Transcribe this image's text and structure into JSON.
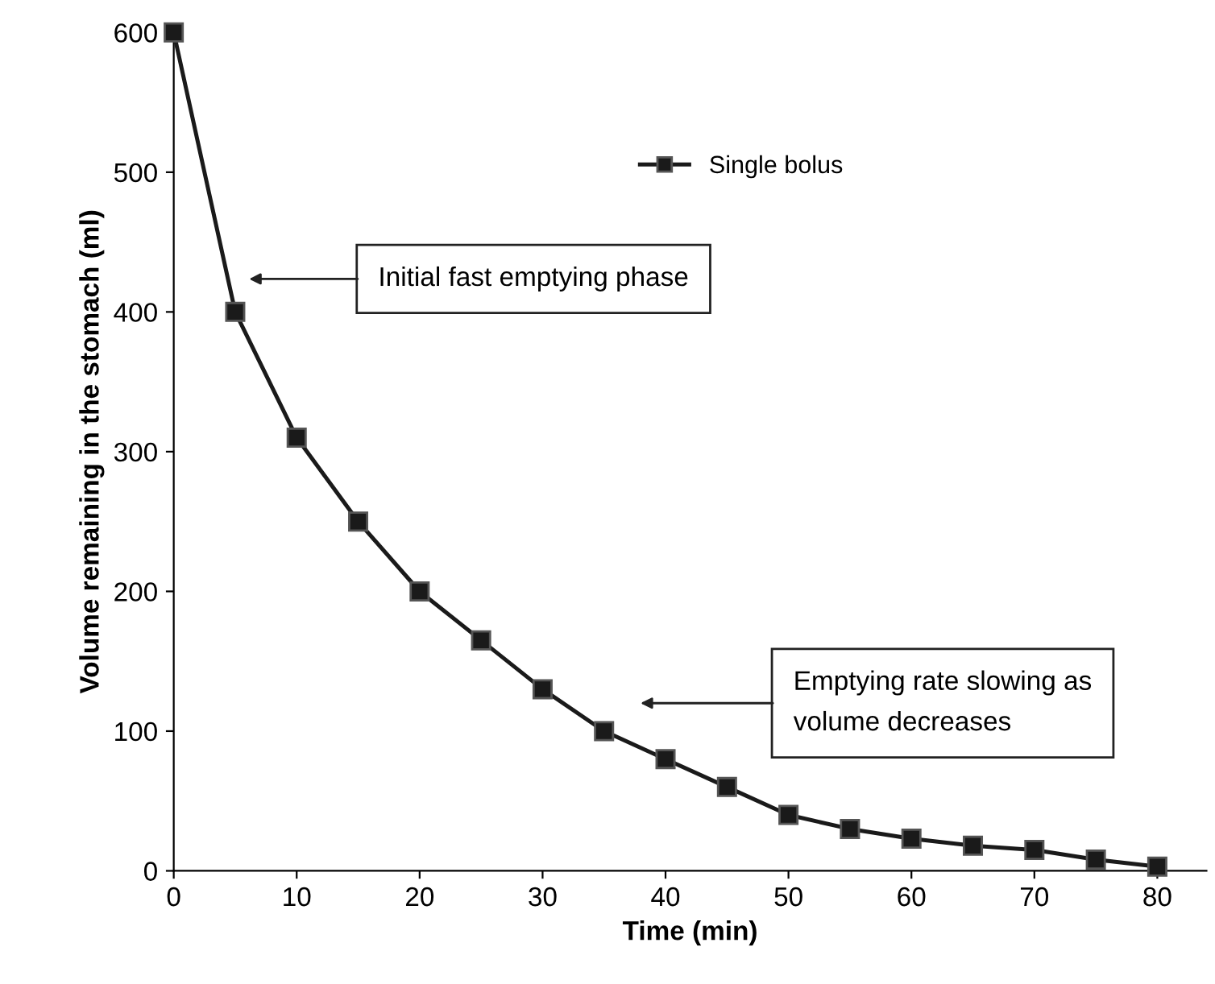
{
  "chart_data": {
    "type": "line",
    "xlabel": "Time (min)",
    "ylabel": "Volume remaining in the stomach (ml)",
    "x": [
      0,
      5,
      10,
      15,
      20,
      25,
      30,
      35,
      40,
      45,
      50,
      55,
      60,
      65,
      70,
      75,
      80
    ],
    "series": [
      {
        "name": "Single bolus",
        "color": "#1a1a1a",
        "values": [
          600,
          400,
          310,
          250,
          200,
          165,
          130,
          100,
          80,
          60,
          40,
          30,
          23,
          18,
          15,
          8,
          3
        ]
      }
    ],
    "xlim": [
      0,
      84
    ],
    "xticks": [
      0,
      10,
      20,
      30,
      40,
      50,
      60,
      70,
      80
    ],
    "ylim": [
      0,
      600
    ],
    "yticks": [
      0,
      100,
      200,
      300,
      400,
      500,
      600
    ],
    "marker": "square",
    "line_style": "solid",
    "grid": false,
    "legend": "top right",
    "annotations": [
      "Initial fast emptying phase",
      "Emptying rate slowing as\nvolume decreases"
    ]
  }
}
